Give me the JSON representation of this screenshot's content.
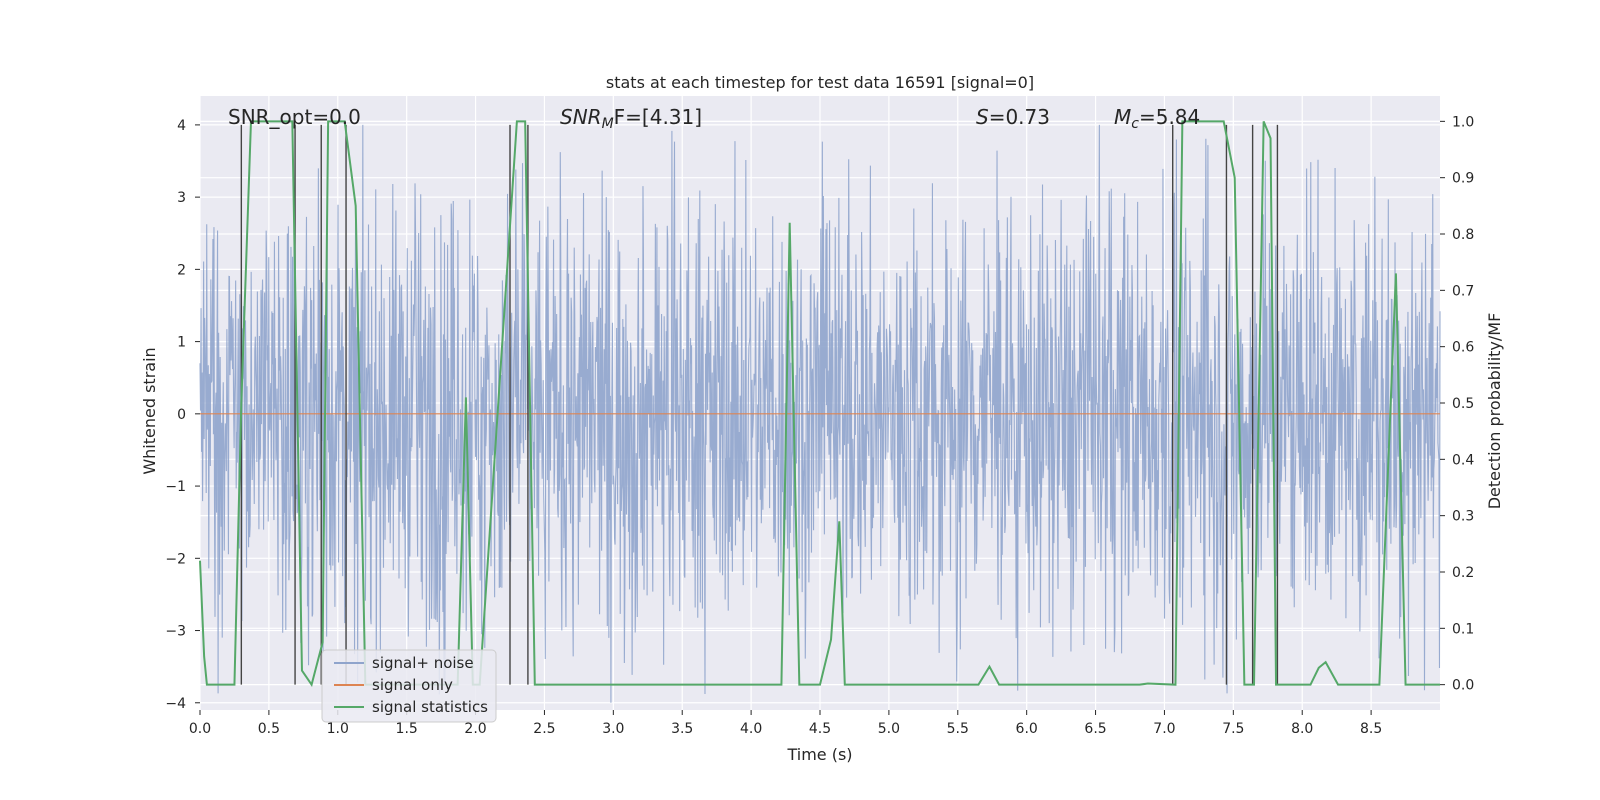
{
  "chart_data": {
    "type": "line",
    "title": "stats at each timestep for test data 16591 [signal=0]",
    "xlabel": "Time (s)",
    "ylabel_left": "Whitened strain",
    "ylabel_right": "Detection probability/MF",
    "xlim": [
      0.0,
      9.0
    ],
    "ylim_left": [
      -4.1,
      4.4
    ],
    "ylim_right": [
      -0.045,
      1.045
    ],
    "x_ticks": [
      "0.0",
      "0.5",
      "1.0",
      "1.5",
      "2.0",
      "2.5",
      "3.0",
      "3.5",
      "4.0",
      "4.5",
      "5.0",
      "5.5",
      "6.0",
      "6.5",
      "7.0",
      "7.5",
      "8.0",
      "8.5"
    ],
    "y_left_ticks": [
      "−4",
      "−3",
      "−2",
      "−1",
      "0",
      "1",
      "2",
      "3",
      "4"
    ],
    "y_right_ticks": [
      "0.0",
      "0.1",
      "0.2",
      "0.3",
      "0.4",
      "0.5",
      "0.6",
      "0.7",
      "0.8",
      "0.9",
      "1.0"
    ],
    "grid": true,
    "legend_placement": "lower-left",
    "annotations": {
      "snr_opt": "SNR_opt=0.0",
      "snr_mf_name": "SNR",
      "snr_mf_sub": "M",
      "snr_mf_rest": "F=[4.31]",
      "s_name": "S",
      "s_rest": "=0.73",
      "mc_name": "M",
      "mc_sub": "c",
      "mc_rest": "=5.84"
    },
    "series": [
      {
        "name": "signal+ noise",
        "color": "#8fa4cc",
        "note_type": "noise",
        "noise_amplitude": 1.4,
        "noise_max": 4.0
      },
      {
        "name": "signal only",
        "color": "#dd8452",
        "x": [
          0.0,
          9.0
        ],
        "y": [
          0.0,
          0.0
        ]
      },
      {
        "name": "signal statistics",
        "color": "#55a868",
        "axis": "right",
        "x": [
          0.0,
          0.03,
          0.05,
          0.25,
          0.3,
          0.37,
          0.67,
          0.74,
          0.81,
          0.89,
          0.93,
          1.05,
          1.13,
          1.2,
          1.87,
          1.93,
          1.98,
          2.03,
          2.3,
          2.36,
          2.43,
          2.51,
          4.22,
          4.28,
          4.35,
          4.43,
          4.5,
          4.58,
          4.64,
          4.68,
          4.73,
          4.78,
          5.0,
          5.65,
          5.73,
          5.8,
          6.82,
          6.88,
          7.08,
          7.13,
          7.43,
          7.51,
          7.58,
          7.65,
          7.72,
          7.77,
          7.81,
          7.86,
          8.06,
          8.12,
          8.17,
          8.26,
          8.56,
          8.68,
          8.75,
          8.8,
          9.0
        ],
        "y": [
          0.22,
          0.05,
          0.0,
          0.0,
          0.5,
          1.0,
          1.0,
          0.025,
          0.0,
          0.075,
          1.0,
          1.0,
          0.85,
          0.0,
          0.0,
          0.51,
          0.0,
          0.0,
          1.0,
          1.0,
          0.0,
          0.0,
          0.0,
          0.82,
          0.0,
          0.0,
          0.0,
          0.08,
          0.29,
          0.0,
          0.0,
          0.0,
          0.0,
          0.0,
          0.032,
          0.0,
          0.0,
          0.002,
          0.0,
          1.0,
          1.0,
          0.9,
          0.0,
          0.0,
          1.0,
          0.97,
          0.0,
          0.0,
          0.0,
          0.03,
          0.04,
          0.0,
          0.0,
          0.73,
          0.0,
          0.0,
          0.0
        ]
      }
    ],
    "event_lines_x": [
      0.3,
      0.69,
      0.88,
      1.06,
      2.25,
      2.38,
      7.06,
      7.45,
      7.64,
      7.82
    ]
  }
}
